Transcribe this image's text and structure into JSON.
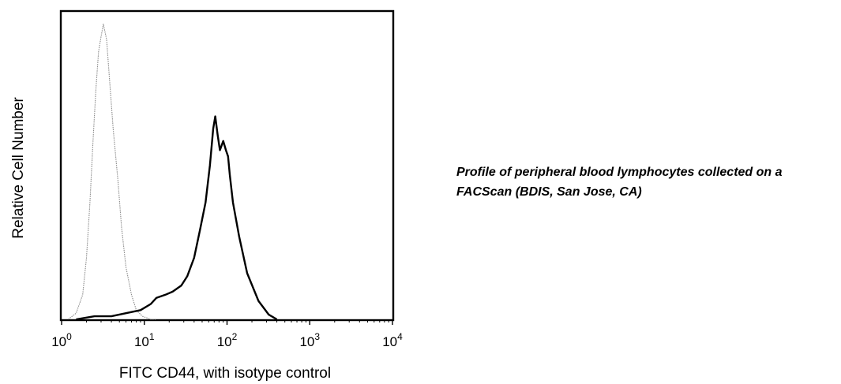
{
  "caption": {
    "line1": "Profile of peripheral blood lymphocytes collected on a",
    "line2": "FACScan (BDIS, San Jose, CA)"
  },
  "chart_data": {
    "type": "line",
    "title": "",
    "xlabel": "FITC CD44, with isotype control",
    "ylabel": "Relative Cell Number",
    "x_scale": "log",
    "xlim": [
      1,
      10000
    ],
    "ylim": [
      0,
      1
    ],
    "grid": false,
    "legend": "none",
    "x_ticks": [
      {
        "base": "10",
        "exp": "0",
        "value": 1
      },
      {
        "base": "10",
        "exp": "1",
        "value": 10
      },
      {
        "base": "10",
        "exp": "2",
        "value": 100
      },
      {
        "base": "10",
        "exp": "3",
        "value": 1000
      },
      {
        "base": "10",
        "exp": "4",
        "value": 10000
      }
    ],
    "series": [
      {
        "style": "dotted-thin",
        "color": "#8a8a8a",
        "points": [
          [
            1.2,
            0.0
          ],
          [
            1.5,
            0.02
          ],
          [
            1.8,
            0.08
          ],
          [
            2.0,
            0.2
          ],
          [
            2.2,
            0.38
          ],
          [
            2.4,
            0.58
          ],
          [
            2.6,
            0.75
          ],
          [
            2.8,
            0.87
          ],
          [
            3.0,
            0.92
          ],
          [
            3.2,
            0.96
          ],
          [
            3.5,
            0.91
          ],
          [
            3.8,
            0.78
          ],
          [
            4.2,
            0.62
          ],
          [
            4.8,
            0.45
          ],
          [
            5.3,
            0.3
          ],
          [
            6.0,
            0.17
          ],
          [
            7.0,
            0.08
          ],
          [
            8.0,
            0.03
          ],
          [
            9.5,
            0.01
          ],
          [
            12,
            0.0
          ],
          [
            14,
            0.0
          ]
        ]
      },
      {
        "style": "solid-thick",
        "color": "#000000",
        "points": [
          [
            1.5,
            0.0
          ],
          [
            2.5,
            0.01
          ],
          [
            4.0,
            0.01
          ],
          [
            6.0,
            0.02
          ],
          [
            9.0,
            0.03
          ],
          [
            12,
            0.05
          ],
          [
            14,
            0.07
          ],
          [
            18,
            0.08
          ],
          [
            22,
            0.09
          ],
          [
            28,
            0.11
          ],
          [
            33,
            0.14
          ],
          [
            40,
            0.2
          ],
          [
            47,
            0.29
          ],
          [
            55,
            0.38
          ],
          [
            62,
            0.5
          ],
          [
            68,
            0.62
          ],
          [
            72,
            0.66
          ],
          [
            77,
            0.6
          ],
          [
            82,
            0.55
          ],
          [
            90,
            0.58
          ],
          [
            97,
            0.55
          ],
          [
            103,
            0.53
          ],
          [
            108,
            0.47
          ],
          [
            118,
            0.38
          ],
          [
            140,
            0.27
          ],
          [
            175,
            0.15
          ],
          [
            240,
            0.06
          ],
          [
            320,
            0.015
          ],
          [
            400,
            0.0
          ]
        ]
      }
    ]
  }
}
